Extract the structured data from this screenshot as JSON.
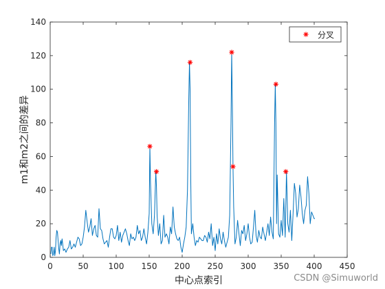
{
  "chart_data": {
    "type": "line",
    "xlabel": "中心点索引",
    "ylabel": "m1和m2之间的差异",
    "xlim": [
      0,
      450
    ],
    "ylim": [
      0,
      140
    ],
    "xticks": [
      "0",
      "50",
      "100",
      "150",
      "200",
      "250",
      "300",
      "350",
      "400",
      "450"
    ],
    "yticks": [
      "0",
      "20",
      "40",
      "60",
      "80",
      "100",
      "120",
      "140"
    ],
    "grid": false,
    "legend_position": "top-right",
    "line_color": "#0072BD",
    "marker_color": "#FF0000",
    "series": [
      {
        "type": "line",
        "x": [
          1,
          2,
          3,
          4,
          5,
          6,
          7,
          8,
          9,
          10,
          11,
          12,
          13,
          14,
          15,
          16,
          17,
          18,
          19,
          20,
          22,
          24,
          26,
          28,
          30,
          32,
          34,
          36,
          38,
          40,
          42,
          44,
          46,
          48,
          50,
          52,
          54,
          56,
          58,
          60,
          62,
          64,
          66,
          68,
          70,
          72,
          74,
          76,
          78,
          80,
          82,
          84,
          86,
          88,
          90,
          92,
          94,
          96,
          98,
          100,
          102,
          104,
          106,
          108,
          110,
          112,
          114,
          116,
          118,
          120,
          122,
          124,
          126,
          128,
          130,
          132,
          134,
          136,
          138,
          140,
          142,
          144,
          146,
          148,
          150,
          151,
          152,
          154,
          156,
          158,
          160,
          161,
          162,
          164,
          166,
          168,
          170,
          172,
          174,
          176,
          178,
          180,
          182,
          184,
          186,
          188,
          190,
          192,
          194,
          196,
          198,
          200,
          202,
          204,
          206,
          208,
          210,
          211,
          212,
          213,
          214,
          216,
          218,
          220,
          222,
          224,
          226,
          228,
          230,
          232,
          234,
          236,
          238,
          240,
          242,
          244,
          246,
          248,
          250,
          252,
          254,
          256,
          258,
          260,
          262,
          264,
          266,
          268,
          270,
          272,
          274,
          275,
          276,
          277,
          278,
          280,
          282,
          284,
          286,
          288,
          290,
          292,
          294,
          296,
          298,
          300,
          302,
          304,
          306,
          308,
          310,
          312,
          314,
          316,
          318,
          320,
          322,
          324,
          326,
          328,
          330,
          332,
          334,
          336,
          338,
          340,
          341,
          342,
          343,
          344,
          346,
          348,
          350,
          352,
          354,
          356,
          358,
          360,
          362,
          364,
          366,
          368,
          370,
          372,
          374,
          376,
          378,
          380,
          382,
          384,
          386,
          388,
          390,
          392,
          394,
          396,
          398,
          400,
          401
        ],
        "y": [
          2,
          6,
          6,
          1,
          2,
          6,
          1,
          4,
          12,
          16,
          15,
          10,
          5,
          2,
          8,
          10,
          7,
          11,
          8,
          4,
          5,
          3,
          5,
          6,
          10,
          5,
          6,
          8,
          6,
          9,
          12,
          11,
          7,
          8,
          12,
          18,
          28,
          21,
          15,
          18,
          23,
          13,
          17,
          19,
          13,
          12,
          29,
          17,
          16,
          11,
          8,
          9,
          10,
          6,
          12,
          17,
          17,
          12,
          11,
          13,
          19,
          10,
          15,
          9,
          13,
          15,
          17,
          14,
          10,
          7,
          14,
          11,
          12,
          10,
          12,
          19,
          14,
          16,
          10,
          12,
          17,
          12,
          8,
          15,
          26,
          66,
          45,
          20,
          14,
          25,
          51,
          42,
          25,
          13,
          20,
          8,
          10,
          25,
          12,
          14,
          12,
          8,
          18,
          14,
          30,
          18,
          14,
          11,
          10,
          12,
          6,
          3,
          8,
          12,
          18,
          40,
          95,
          116,
          100,
          45,
          14,
          20,
          12,
          7,
          10,
          9,
          12,
          11,
          10,
          10,
          13,
          12,
          9,
          15,
          11,
          20,
          7,
          12,
          4,
          14,
          8,
          17,
          11,
          8,
          15,
          10,
          6,
          9,
          12,
          25,
          80,
          122,
          90,
          54,
          30,
          8,
          12,
          22,
          14,
          7,
          16,
          14,
          19,
          10,
          14,
          20,
          12,
          8,
          9,
          18,
          28,
          13,
          9,
          16,
          12,
          11,
          18,
          14,
          10,
          15,
          20,
          13,
          24,
          15,
          11,
          80,
          103,
          80,
          20,
          49,
          14,
          12,
          22,
          13,
          35,
          12,
          51,
          20,
          15,
          28,
          10,
          26,
          44,
          38,
          24,
          29,
          43,
          36,
          26,
          20,
          28,
          31,
          48,
          38,
          20,
          27,
          25,
          23,
          23
        ]
      },
      {
        "name": "分叉",
        "type": "scatter",
        "marker": "*",
        "x": [
          151,
          161,
          212,
          275,
          277,
          342,
          357
        ],
        "y": [
          66,
          51,
          116,
          122,
          54,
          103,
          51
        ]
      }
    ]
  },
  "watermark": "CSDN @Simuworld"
}
